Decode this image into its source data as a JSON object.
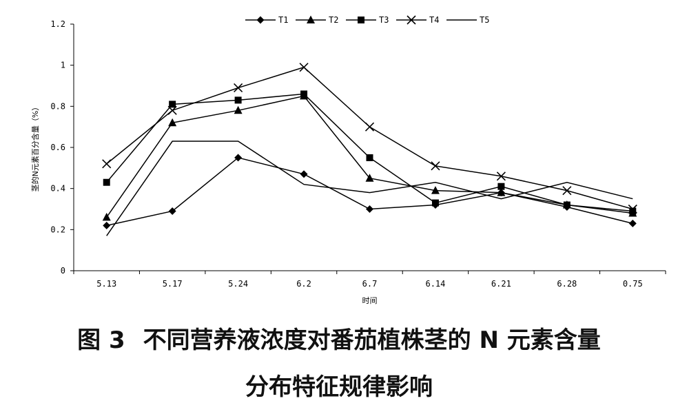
{
  "chart_data": {
    "type": "line",
    "title": "",
    "xlabel": "时间",
    "ylabel": "茎的N元素百分含量（%）",
    "categories": [
      "5.13",
      "5.17",
      "5.24",
      "6.2",
      "6.7",
      "6.14",
      "6.21",
      "6.28",
      "0.75"
    ],
    "ylim": [
      0,
      1.2
    ],
    "yticks": [
      "0",
      "0.2",
      "0.4",
      "0.6",
      "0.8",
      "1",
      "1.2"
    ],
    "grid": false,
    "legend_position": "top",
    "series": [
      {
        "name": "T1",
        "marker": "diamond",
        "values": [
          0.22,
          0.29,
          0.55,
          0.47,
          0.3,
          0.32,
          0.38,
          0.31,
          0.23
        ]
      },
      {
        "name": "T2",
        "marker": "triangle",
        "values": [
          0.26,
          0.72,
          0.78,
          0.85,
          0.45,
          0.39,
          0.38,
          0.32,
          0.28
        ]
      },
      {
        "name": "T3",
        "marker": "square",
        "values": [
          0.43,
          0.81,
          0.83,
          0.86,
          0.55,
          0.33,
          0.41,
          0.32,
          0.29
        ]
      },
      {
        "name": "T4",
        "marker": "x",
        "values": [
          0.52,
          0.78,
          0.89,
          0.99,
          0.7,
          0.51,
          0.46,
          0.39,
          0.3
        ]
      },
      {
        "name": "T5",
        "marker": "none",
        "values": [
          0.17,
          0.63,
          0.63,
          0.42,
          0.38,
          0.43,
          0.35,
          0.43,
          0.35
        ]
      }
    ]
  },
  "caption": {
    "figure_label": "图 3",
    "line1": "不同营养液浓度对番茄植株茎的 N 元素含量",
    "line2": "分布特征规律影响"
  }
}
